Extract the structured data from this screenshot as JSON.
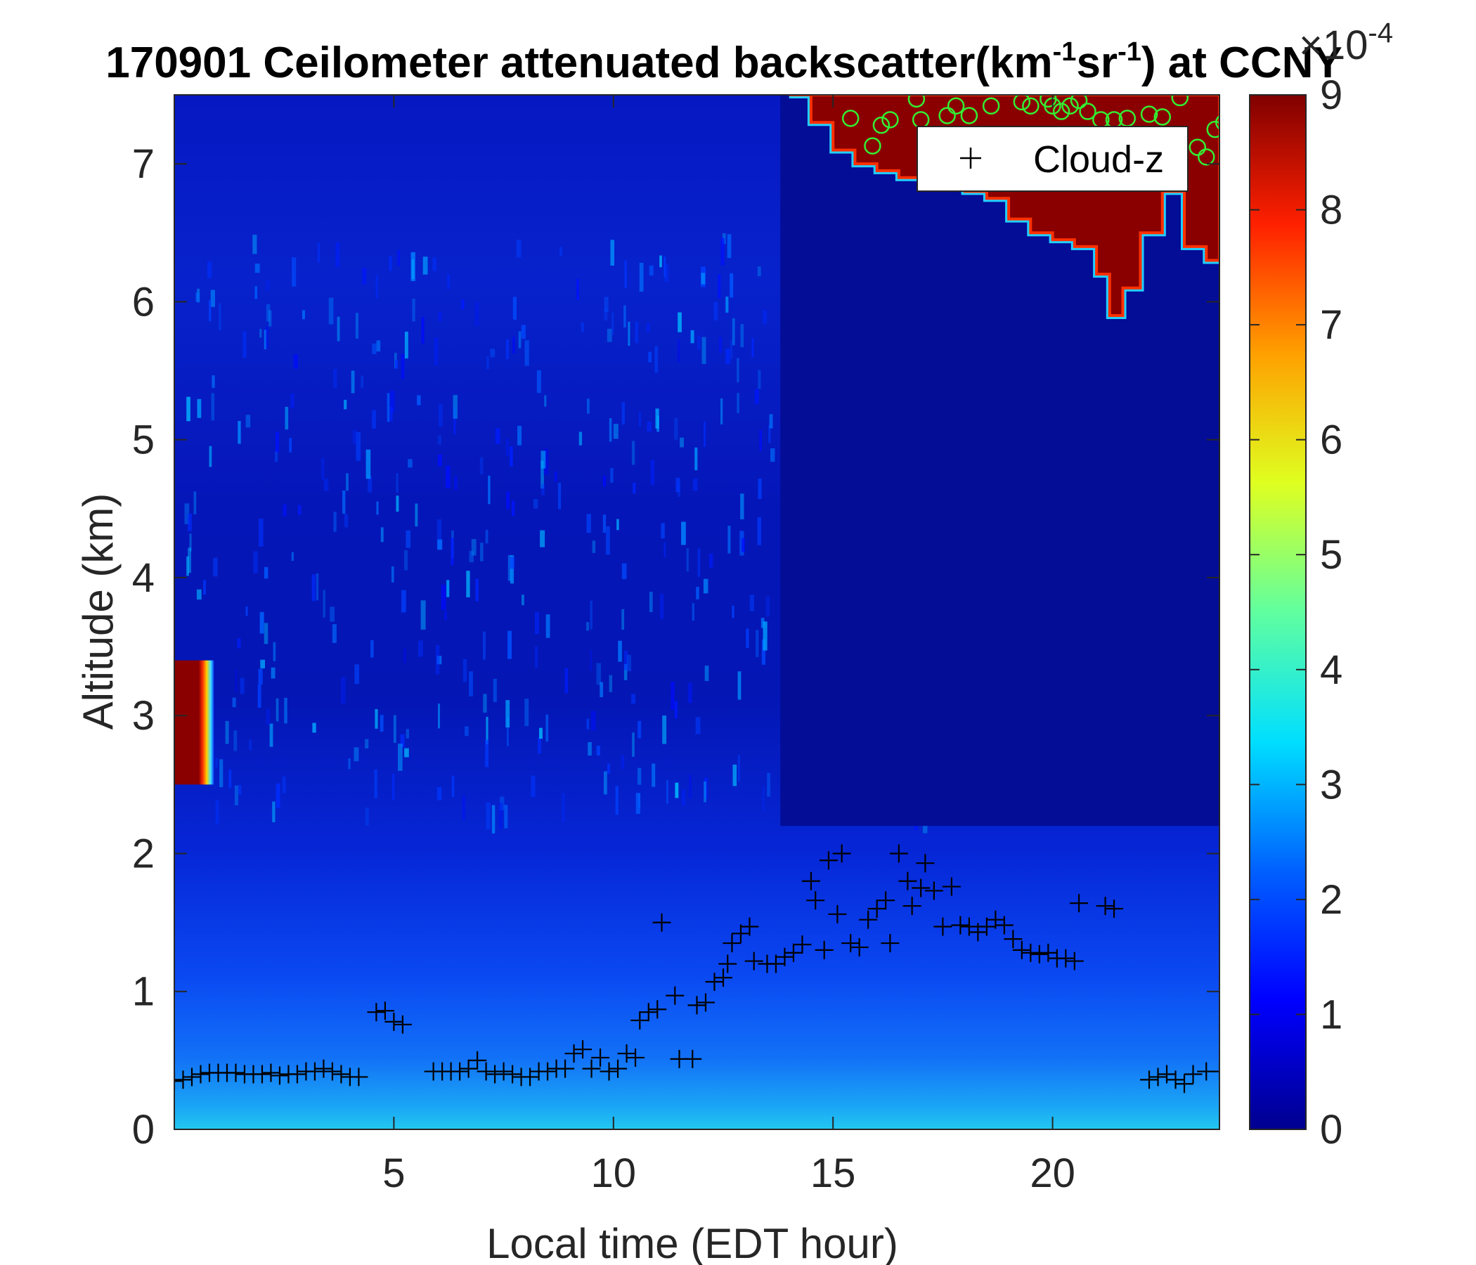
{
  "chart_data": {
    "type": "heatmap",
    "title": {
      "prefix": "170901 Ceilometer attenuated backscatter(km",
      "sup1": "-1",
      "mid": "sr",
      "sup2": "-1",
      "suffix": ") at CCNY"
    },
    "xlabel": "Local time (EDT hour)",
    "ylabel": "Altitude (km)",
    "xlim": [
      0,
      23.8
    ],
    "ylim": [
      0,
      7.5
    ],
    "xticks": [
      5,
      10,
      15,
      20
    ],
    "yticks": [
      0,
      1,
      2,
      3,
      4,
      5,
      6,
      7
    ],
    "colorbar": {
      "colormap": "jet",
      "range": [
        0,
        9
      ],
      "ticks": [
        0,
        1,
        2,
        3,
        4,
        5,
        6,
        7,
        8,
        9
      ],
      "multiplier": "×10",
      "multiplier_exp": "-4"
    },
    "legend": {
      "entries": [
        "Cloud-z"
      ],
      "location": "top-right"
    },
    "features": {
      "low_cloud": {
        "t": [
          0.0,
          0.9
        ],
        "z": [
          2.5,
          3.4
        ],
        "value": 9
      },
      "upper_cloud_ceiling_km": [
        [
          14.0,
          7.5
        ],
        [
          14.5,
          7.3
        ],
        [
          15.0,
          7.1
        ],
        [
          15.5,
          7.0
        ],
        [
          16.0,
          6.95
        ],
        [
          16.5,
          6.9
        ],
        [
          17.0,
          6.85
        ],
        [
          17.5,
          6.85
        ],
        [
          18.0,
          6.8
        ],
        [
          18.5,
          6.75
        ],
        [
          19.0,
          6.6
        ],
        [
          19.5,
          6.5
        ],
        [
          20.0,
          6.45
        ],
        [
          20.5,
          6.4
        ],
        [
          21.0,
          6.2
        ],
        [
          21.3,
          5.9
        ],
        [
          21.6,
          6.1
        ],
        [
          22.0,
          6.5
        ],
        [
          22.5,
          6.8
        ],
        [
          23.0,
          6.4
        ],
        [
          23.5,
          6.3
        ],
        [
          23.8,
          6.3
        ]
      ]
    },
    "series": [
      {
        "name": "Cloud-z",
        "marker": "+",
        "color": "#000000",
        "points": [
          [
            0.0,
            0.35
          ],
          [
            0.2,
            0.36
          ],
          [
            0.4,
            0.38
          ],
          [
            0.6,
            0.4
          ],
          [
            0.8,
            0.41
          ],
          [
            1.0,
            0.41
          ],
          [
            1.2,
            0.41
          ],
          [
            1.4,
            0.41
          ],
          [
            1.6,
            0.4
          ],
          [
            1.8,
            0.4
          ],
          [
            2.0,
            0.4
          ],
          [
            2.2,
            0.41
          ],
          [
            2.4,
            0.39
          ],
          [
            2.6,
            0.4
          ],
          [
            2.8,
            0.4
          ],
          [
            3.0,
            0.42
          ],
          [
            3.2,
            0.42
          ],
          [
            3.4,
            0.44
          ],
          [
            3.6,
            0.42
          ],
          [
            3.8,
            0.4
          ],
          [
            4.0,
            0.38
          ],
          [
            4.2,
            0.38
          ],
          [
            4.6,
            0.85
          ],
          [
            4.8,
            0.86
          ],
          [
            5.0,
            0.78
          ],
          [
            5.2,
            0.76
          ],
          [
            5.9,
            0.42
          ],
          [
            6.1,
            0.42
          ],
          [
            6.3,
            0.42
          ],
          [
            6.5,
            0.42
          ],
          [
            6.7,
            0.44
          ],
          [
            6.9,
            0.5
          ],
          [
            7.1,
            0.42
          ],
          [
            7.3,
            0.4
          ],
          [
            7.5,
            0.42
          ],
          [
            7.7,
            0.4
          ],
          [
            7.9,
            0.38
          ],
          [
            8.1,
            0.38
          ],
          [
            8.3,
            0.42
          ],
          [
            8.5,
            0.42
          ],
          [
            8.7,
            0.44
          ],
          [
            8.9,
            0.44
          ],
          [
            9.1,
            0.55
          ],
          [
            9.3,
            0.58
          ],
          [
            9.5,
            0.44
          ],
          [
            9.7,
            0.52
          ],
          [
            9.9,
            0.42
          ],
          [
            10.1,
            0.44
          ],
          [
            10.3,
            0.55
          ],
          [
            10.5,
            0.52
          ],
          [
            10.6,
            0.79
          ],
          [
            10.8,
            0.85
          ],
          [
            11.0,
            0.87
          ],
          [
            11.1,
            1.5
          ],
          [
            11.4,
            0.97
          ],
          [
            11.5,
            0.51
          ],
          [
            11.8,
            0.51
          ],
          [
            11.9,
            0.9
          ],
          [
            12.1,
            0.92
          ],
          [
            12.3,
            1.07
          ],
          [
            12.5,
            1.1
          ],
          [
            12.6,
            1.2
          ],
          [
            12.7,
            1.35
          ],
          [
            12.9,
            1.42
          ],
          [
            13.1,
            1.47
          ],
          [
            13.2,
            1.22
          ],
          [
            13.5,
            1.2
          ],
          [
            13.7,
            1.2
          ],
          [
            13.9,
            1.25
          ],
          [
            14.1,
            1.28
          ],
          [
            14.3,
            1.34
          ],
          [
            14.5,
            1.8
          ],
          [
            14.6,
            1.66
          ],
          [
            14.8,
            1.3
          ],
          [
            14.9,
            1.95
          ],
          [
            15.1,
            1.56
          ],
          [
            15.2,
            2.0
          ],
          [
            15.4,
            1.35
          ],
          [
            15.6,
            1.32
          ],
          [
            15.8,
            1.52
          ],
          [
            16.0,
            1.6
          ],
          [
            16.2,
            1.66
          ],
          [
            16.3,
            1.35
          ],
          [
            16.5,
            2.0
          ],
          [
            16.7,
            1.8
          ],
          [
            16.8,
            1.62
          ],
          [
            17.0,
            1.75
          ],
          [
            17.1,
            1.93
          ],
          [
            17.3,
            1.73
          ],
          [
            17.5,
            1.47
          ],
          [
            17.7,
            1.76
          ],
          [
            17.9,
            1.48
          ],
          [
            18.1,
            1.47
          ],
          [
            18.3,
            1.43
          ],
          [
            18.5,
            1.47
          ],
          [
            18.7,
            1.52
          ],
          [
            18.9,
            1.48
          ],
          [
            19.1,
            1.38
          ],
          [
            19.3,
            1.3
          ],
          [
            19.5,
            1.28
          ],
          [
            19.7,
            1.27
          ],
          [
            19.9,
            1.28
          ],
          [
            20.1,
            1.24
          ],
          [
            20.3,
            1.24
          ],
          [
            20.5,
            1.22
          ],
          [
            20.6,
            1.64
          ],
          [
            21.2,
            1.62
          ],
          [
            21.4,
            1.6
          ],
          [
            22.2,
            0.36
          ],
          [
            22.4,
            0.38
          ],
          [
            22.6,
            0.4
          ],
          [
            22.8,
            0.36
          ],
          [
            23.0,
            0.33
          ],
          [
            23.2,
            0.4
          ],
          [
            23.5,
            0.42
          ],
          [
            23.8,
            0.42
          ]
        ]
      },
      {
        "name": "",
        "marker": "o",
        "color": "#33ee33",
        "points": [
          [
            15.4,
            7.33
          ],
          [
            15.9,
            7.13
          ],
          [
            16.1,
            7.28
          ],
          [
            16.3,
            7.32
          ],
          [
            16.9,
            7.47
          ],
          [
            17.0,
            7.32
          ],
          [
            17.6,
            7.35
          ],
          [
            17.8,
            7.42
          ],
          [
            18.1,
            7.35
          ],
          [
            18.6,
            7.42
          ],
          [
            19.3,
            7.45
          ],
          [
            19.5,
            7.42
          ],
          [
            19.9,
            7.47
          ],
          [
            20.0,
            7.42
          ],
          [
            20.2,
            7.38
          ],
          [
            20.4,
            7.42
          ],
          [
            20.6,
            7.46
          ],
          [
            20.8,
            7.38
          ],
          [
            21.1,
            7.32
          ],
          [
            21.4,
            7.32
          ],
          [
            21.7,
            7.33
          ],
          [
            22.2,
            7.36
          ],
          [
            22.5,
            7.34
          ],
          [
            22.9,
            7.48
          ],
          [
            23.3,
            7.12
          ],
          [
            23.5,
            7.05
          ],
          [
            23.7,
            7.25
          ],
          [
            23.9,
            7.3
          ]
        ]
      }
    ]
  }
}
